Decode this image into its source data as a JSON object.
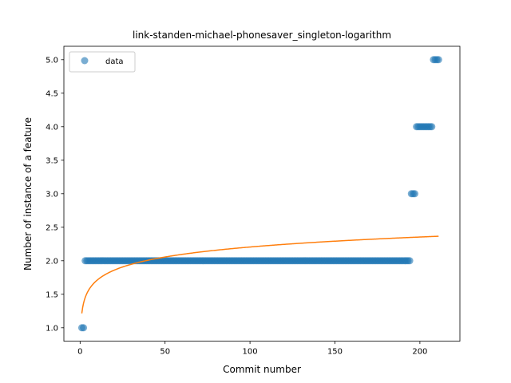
{
  "chart_data": {
    "type": "scatter",
    "title": "link-standen-michael-phonesaver_singleton-logarithm",
    "xlabel": "Commit number",
    "ylabel": "Number of instance of a feature",
    "xlim": [
      -9.55,
      223.55
    ],
    "ylim": [
      0.8,
      5.2
    ],
    "xticks": [
      0,
      50,
      100,
      150,
      200
    ],
    "yticks": [
      1.0,
      1.5,
      2.0,
      2.5,
      3.0,
      3.5,
      4.0,
      4.5,
      5.0
    ],
    "xtick_labels": [
      "0",
      "50",
      "100",
      "150",
      "200"
    ],
    "ytick_labels": [
      "1.0",
      "1.5",
      "2.0",
      "2.5",
      "3.0",
      "3.5",
      "4.0",
      "4.5",
      "5.0"
    ],
    "legend": {
      "position": "upper-left",
      "entries": [
        "data"
      ]
    },
    "colors": {
      "data": "#1f77b4",
      "fit": "#ff7f0e"
    },
    "series": [
      {
        "name": "data",
        "kind": "points",
        "segments": [
          {
            "x_start": 1,
            "x_end": 2,
            "y": 1
          },
          {
            "x_start": 3,
            "x_end": 194,
            "y": 2
          },
          {
            "x_start": 195,
            "x_end": 197,
            "y": 3
          },
          {
            "x_start": 198,
            "x_end": 207,
            "y": 4
          },
          {
            "x_start": 208,
            "x_end": 211,
            "y": 5
          }
        ]
      },
      {
        "kind": "fit",
        "model": "a + b*ln(x)",
        "a": 1.215,
        "b": 0.215,
        "x_range": [
          1,
          211
        ]
      }
    ]
  }
}
